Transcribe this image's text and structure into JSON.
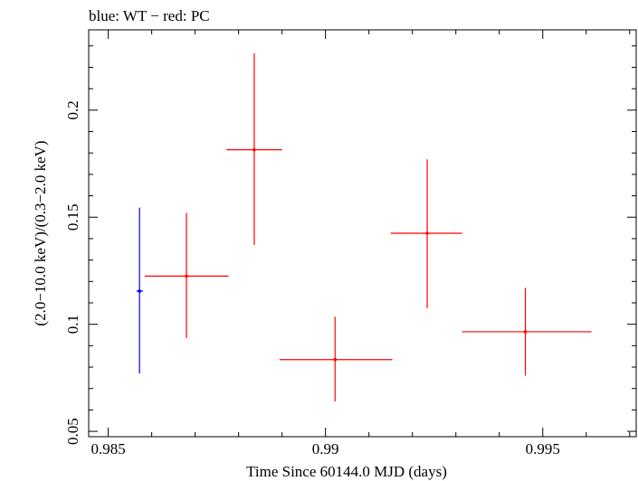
{
  "chart_data": {
    "type": "scatter",
    "title": "blue: WT − red: PC",
    "xlabel": "Time Since 60144.0 MJD (days)",
    "ylabel": "(2.0−10.0 keV)/(0.3−2.0 keV)",
    "xlim": [
      0.98455,
      0.99715
    ],
    "ylim": [
      0.0475,
      0.2375
    ],
    "x_ticks": [
      {
        "value": 0.985,
        "label": "0.985"
      },
      {
        "value": 0.99,
        "label": "0.99"
      },
      {
        "value": 0.995,
        "label": "0.995"
      }
    ],
    "y_ticks": [
      {
        "value": 0.05,
        "label": "0.05"
      },
      {
        "value": 0.1,
        "label": "0.1"
      },
      {
        "value": 0.15,
        "label": "0.15"
      },
      {
        "value": 0.2,
        "label": "0.2"
      }
    ],
    "grid": false,
    "series": [
      {
        "color": "#0000ff",
        "points": [
          {
            "x": 0.98572,
            "y": 0.1155,
            "xlo": 0.98565,
            "xhi": 0.9858,
            "ylo": 0.077,
            "yhi": 0.1545
          }
        ]
      },
      {
        "color": "#ff0000",
        "points": [
          {
            "x": 0.9868,
            "y": 0.1225,
            "xlo": 0.98584,
            "xhi": 0.98777,
            "ylo": 0.0935,
            "yhi": 0.152
          },
          {
            "x": 0.98836,
            "y": 0.1815,
            "xlo": 0.98772,
            "xhi": 0.989,
            "ylo": 0.137,
            "yhi": 0.2265
          },
          {
            "x": 0.99022,
            "y": 0.0835,
            "xlo": 0.98894,
            "xhi": 0.99154,
            "ylo": 0.064,
            "yhi": 0.1035
          },
          {
            "x": 0.99234,
            "y": 0.1425,
            "xlo": 0.9915,
            "xhi": 0.99314,
            "ylo": 0.1075,
            "yhi": 0.177
          },
          {
            "x": 0.9946,
            "y": 0.0965,
            "xlo": 0.99314,
            "xhi": 0.99612,
            "ylo": 0.076,
            "yhi": 0.117
          }
        ]
      }
    ]
  }
}
